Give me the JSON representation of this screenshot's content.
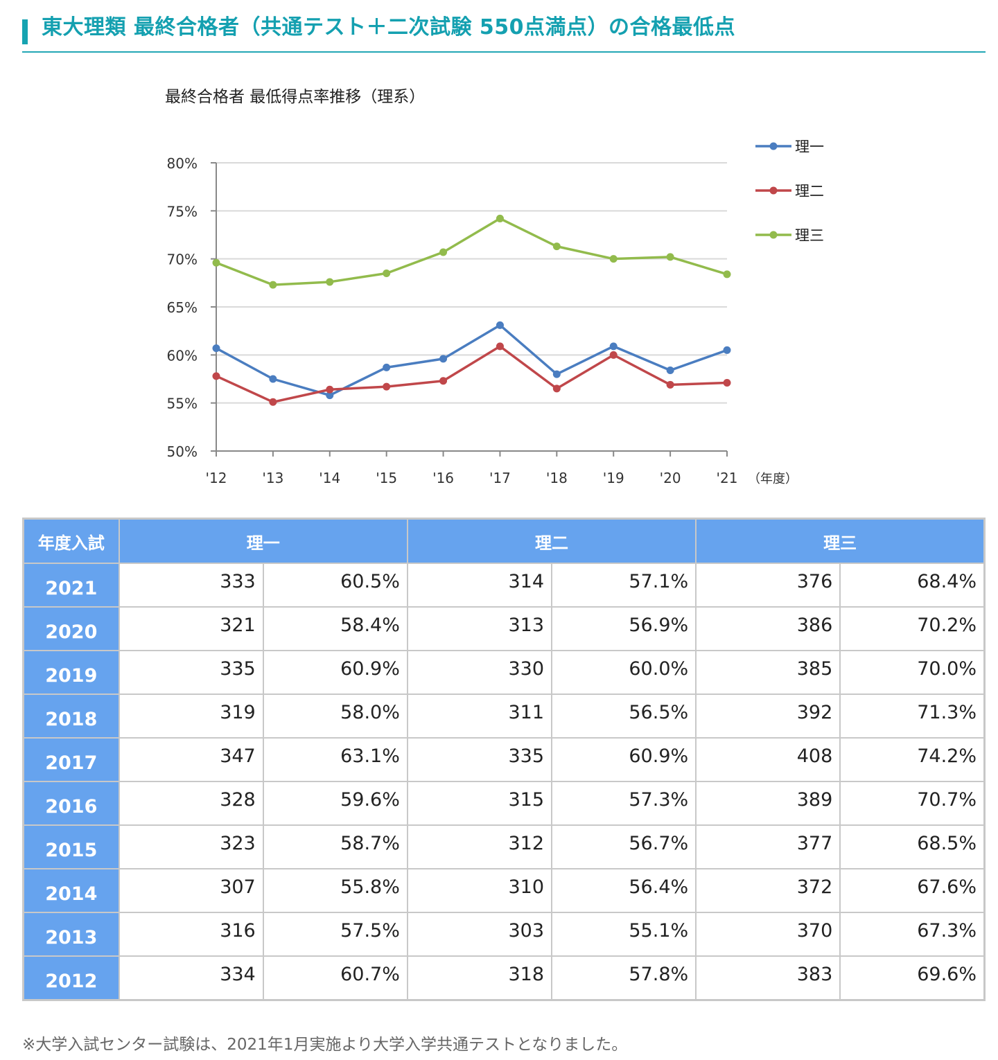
{
  "header": {
    "title": "東大理類 最終合格者（共通テスト＋二次試験 550点満点）の合格最低点",
    "accent_color": "#16a3b1"
  },
  "chart": {
    "title": "最終合格者 最低得点率推移（理系）",
    "x_unit_label": "（年度）"
  },
  "chart_data": {
    "type": "line",
    "title": "最終合格者 最低得点率推移（理系）",
    "xlabel": "（年度）",
    "ylabel": "",
    "x": [
      "'12",
      "'13",
      "'14",
      "'15",
      "'16",
      "'17",
      "'18",
      "'19",
      "'20",
      "'21"
    ],
    "yticks": [
      "50%",
      "55%",
      "60%",
      "65%",
      "70%",
      "75%",
      "80%"
    ],
    "ylim": [
      50,
      80
    ],
    "grid": true,
    "legend_position": "right",
    "series": [
      {
        "name": "理一",
        "color": "#4a7dc0",
        "values": [
          60.7,
          57.5,
          55.8,
          58.7,
          59.6,
          63.1,
          58.0,
          60.9,
          58.4,
          60.5
        ]
      },
      {
        "name": "理二",
        "color": "#c0474a",
        "values": [
          57.8,
          55.1,
          56.4,
          56.7,
          57.3,
          60.9,
          56.5,
          60.0,
          56.9,
          57.1
        ]
      },
      {
        "name": "理三",
        "color": "#92bb4c",
        "values": [
          69.6,
          67.3,
          67.6,
          68.5,
          70.7,
          74.2,
          71.3,
          70.0,
          70.2,
          68.4
        ]
      }
    ]
  },
  "table": {
    "headers": [
      "年度入試",
      "理一",
      "理二",
      "理三"
    ],
    "rows": [
      {
        "year": "2021",
        "r1_score": "333",
        "r1_rate": "60.5%",
        "r2_score": "314",
        "r2_rate": "57.1%",
        "r3_score": "376",
        "r3_rate": "68.4%"
      },
      {
        "year": "2020",
        "r1_score": "321",
        "r1_rate": "58.4%",
        "r2_score": "313",
        "r2_rate": "56.9%",
        "r3_score": "386",
        "r3_rate": "70.2%"
      },
      {
        "year": "2019",
        "r1_score": "335",
        "r1_rate": "60.9%",
        "r2_score": "330",
        "r2_rate": "60.0%",
        "r3_score": "385",
        "r3_rate": "70.0%"
      },
      {
        "year": "2018",
        "r1_score": "319",
        "r1_rate": "58.0%",
        "r2_score": "311",
        "r2_rate": "56.5%",
        "r3_score": "392",
        "r3_rate": "71.3%"
      },
      {
        "year": "2017",
        "r1_score": "347",
        "r1_rate": "63.1%",
        "r2_score": "335",
        "r2_rate": "60.9%",
        "r3_score": "408",
        "r3_rate": "74.2%"
      },
      {
        "year": "2016",
        "r1_score": "328",
        "r1_rate": "59.6%",
        "r2_score": "315",
        "r2_rate": "57.3%",
        "r3_score": "389",
        "r3_rate": "70.7%"
      },
      {
        "year": "2015",
        "r1_score": "323",
        "r1_rate": "58.7%",
        "r2_score": "312",
        "r2_rate": "56.7%",
        "r3_score": "377",
        "r3_rate": "68.5%"
      },
      {
        "year": "2014",
        "r1_score": "307",
        "r1_rate": "55.8%",
        "r2_score": "310",
        "r2_rate": "56.4%",
        "r3_score": "372",
        "r3_rate": "67.6%"
      },
      {
        "year": "2013",
        "r1_score": "316",
        "r1_rate": "57.5%",
        "r2_score": "303",
        "r2_rate": "55.1%",
        "r3_score": "370",
        "r3_rate": "67.3%"
      },
      {
        "year": "2012",
        "r1_score": "334",
        "r1_rate": "60.7%",
        "r2_score": "318",
        "r2_rate": "57.8%",
        "r3_score": "383",
        "r3_rate": "69.6%"
      }
    ],
    "header_color": "#66a3ee"
  },
  "footnote": "※大学入試センター試験は、2021年1月実施より大学入学共通テストとなりました。"
}
